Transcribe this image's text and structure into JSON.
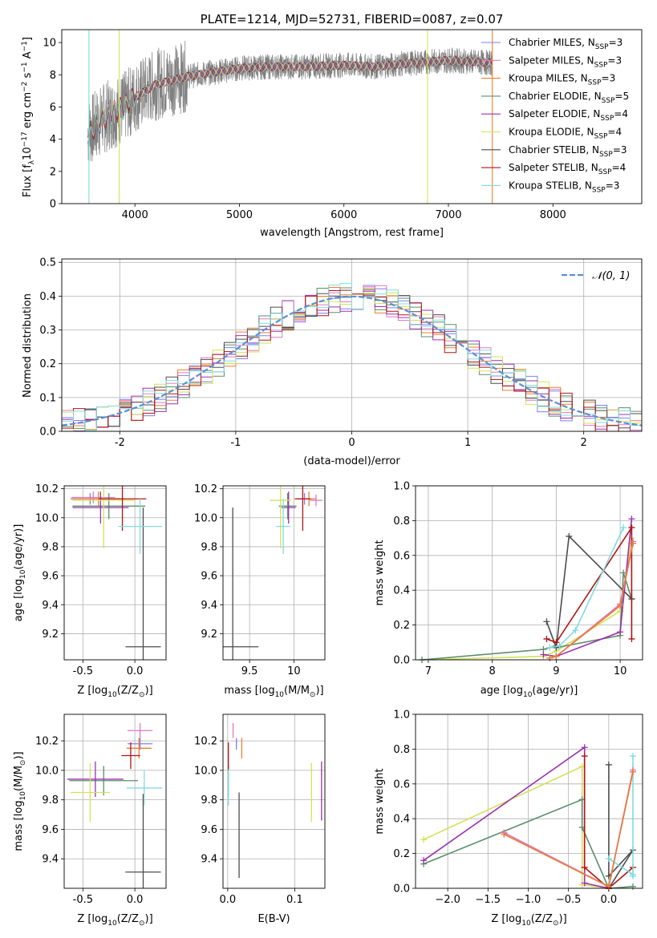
{
  "colors": {
    "Chabrier_MILES": "#7f7ff0",
    "Salpeter_MILES": "#e377c2",
    "Kroupa_MILES": "#ed7d31",
    "Chabrier_ELODIE": "#5b8f6a",
    "Salpeter_ELODIE": "#9b30b0",
    "Kroupa_ELODIE": "#d4e157",
    "Chabrier_STELIB": "#4d4d4d",
    "Salpeter_STELIB": "#b01515",
    "Kroupa_STELIB": "#80dbe0",
    "normal": "#5b8fd6",
    "data": "#808080"
  },
  "chart_data": [
    {
      "id": "spectrum",
      "type": "line",
      "title": "PLATE=1214, MJD=52731, FIBERID=0087, z=0.07",
      "xlabel": "wavelength [Angstrom, rest frame]",
      "ylabel": "Flux [f",
      "ylabel_sub": "λ",
      "ylabel_rest": "10",
      "ylabel_exp": "−17",
      "ylabel_tail": " erg cm",
      "ylabel_exp2": "−2",
      "ylabel_tail2": " s",
      "ylabel_exp3": "−1",
      "ylabel_tail3": " A",
      "ylabel_exp4": "−1",
      "ylabel_end": "]",
      "xlim": [
        3300,
        8850
      ],
      "ylim": [
        0,
        10.8
      ],
      "xticks": [
        4000,
        5000,
        6000,
        7000,
        8000
      ],
      "yticks": [
        0,
        2,
        4,
        6,
        8,
        10
      ],
      "data_range": [
        3550,
        8850
      ],
      "continuum": [
        [
          3550,
          4.4
        ],
        [
          3700,
          5.3
        ],
        [
          3900,
          6.0
        ],
        [
          4000,
          6.6
        ],
        [
          4200,
          7.4
        ],
        [
          4500,
          7.9
        ],
        [
          4800,
          8.2
        ],
        [
          5000,
          8.4
        ],
        [
          5300,
          8.5
        ],
        [
          5600,
          8.5
        ],
        [
          6000,
          8.6
        ],
        [
          6300,
          8.5
        ],
        [
          6600,
          8.7
        ],
        [
          7000,
          8.9
        ],
        [
          7500,
          8.7
        ],
        [
          8000,
          8.6
        ],
        [
          8500,
          8.3
        ],
        [
          8850,
          7.9
        ]
      ],
      "legend": [
        {
          "key": "Chabrier_MILES",
          "label": "Chabrier MILES, N",
          "sub": "SSP",
          "val": "=3"
        },
        {
          "key": "Salpeter_MILES",
          "label": "Salpeter MILES, N",
          "sub": "SSP",
          "val": "=3"
        },
        {
          "key": "Kroupa_MILES",
          "label": "Kroupa MILES, N",
          "sub": "SSP",
          "val": "=3"
        },
        {
          "key": "Chabrier_ELODIE",
          "label": "Chabrier ELODIE, N",
          "sub": "SSP",
          "val": "=5"
        },
        {
          "key": "Salpeter_ELODIE",
          "label": "Salpeter ELODIE, N",
          "sub": "SSP",
          "val": "=4"
        },
        {
          "key": "Kroupa_ELODIE",
          "label": "Kroupa ELODIE, N",
          "sub": "SSP",
          "val": "=4"
        },
        {
          "key": "Chabrier_STELIB",
          "label": "Chabrier STELIB, N",
          "sub": "SSP",
          "val": "=3"
        },
        {
          "key": "Salpeter_STELIB",
          "label": "Salpeter STELIB, N",
          "sub": "SSP",
          "val": "=4"
        },
        {
          "key": "Kroupa_STELIB",
          "label": "Kroupa STELIB, N",
          "sub": "SSP",
          "val": "=3"
        }
      ]
    },
    {
      "id": "residuals",
      "type": "histogram",
      "xlabel": "(data-model)/error",
      "ylabel": "Normed distribution",
      "xlim": [
        -2.5,
        2.5
      ],
      "ylim": [
        0,
        0.51
      ],
      "xticks": [
        -2,
        -1,
        0,
        1,
        2
      ],
      "yticks": [
        0.0,
        0.1,
        0.2,
        0.3,
        0.4,
        0.5
      ],
      "legend_label": "𝒩(0, 1)",
      "bin_width": 0.1
    },
    {
      "id": "age_vs_Z",
      "type": "scatter",
      "xlabel": "Z [log",
      "xlabel_sub": "10",
      "xlabel_rest": "(Z/Z",
      "xlabel_sub2": "⊙",
      "xlabel_end": ")]",
      "ylabel": "age  [log",
      "ylabel_sub": "10",
      "ylabel_rest": "(age/yr)]",
      "xlim": [
        -0.68,
        0.3
      ],
      "ylim": [
        9.02,
        10.22
      ],
      "xticks": [
        -0.5,
        0.0
      ],
      "yticks": [
        9.2,
        9.4,
        9.6,
        9.8,
        10.0,
        10.2
      ],
      "points": [
        {
          "key": "Chabrier_MILES",
          "x": -0.43,
          "y": 10.13,
          "xerr": 0.19,
          "yerr": 0.04
        },
        {
          "key": "Salpeter_MILES",
          "x": -0.4,
          "y": 10.14,
          "xerr": 0.21,
          "yerr": 0.04
        },
        {
          "key": "Kroupa_MILES",
          "x": -0.35,
          "y": 10.13,
          "xerr": 0.25,
          "yerr": 0.05
        },
        {
          "key": "Chabrier_ELODIE",
          "x": -0.25,
          "y": 10.08,
          "xerr": 0.35,
          "yerr": 0.09
        },
        {
          "key": "Salpeter_ELODIE",
          "x": -0.33,
          "y": 10.07,
          "xerr": 0.27,
          "yerr": 0.11
        },
        {
          "key": "Kroupa_ELODIE",
          "x": -0.3,
          "y": 10.12,
          "xerr": 0.3,
          "yerr": 0.33
        },
        {
          "key": "Chabrier_STELIB",
          "x": 0.08,
          "y": 9.11,
          "xerr": 0.17,
          "yerr": 0.96
        },
        {
          "key": "Salpeter_STELIB",
          "x": -0.12,
          "y": 10.13,
          "xerr": 0.23,
          "yerr": 0.22
        },
        {
          "key": "Kroupa_STELIB",
          "x": 0.05,
          "y": 9.94,
          "xerr": 0.21,
          "yerr": 0.19
        }
      ]
    },
    {
      "id": "age_vs_mass",
      "type": "scatter",
      "xlabel": "mass [log",
      "xlabel_sub": "10",
      "xlabel_rest": "(M/M",
      "xlabel_sub2": "⊙",
      "xlabel_end": ")]",
      "xlim": [
        9.2,
        10.35
      ],
      "ylim": [
        9.02,
        10.22
      ],
      "xticks": [
        9.5,
        10.0
      ],
      "yticks": [
        9.2,
        9.4,
        9.6,
        9.8,
        10.0,
        10.2
      ],
      "points": [
        {
          "key": "Chabrier_MILES",
          "x": 10.12,
          "y": 10.13,
          "xerr": 0.08,
          "yerr": 0.04
        },
        {
          "key": "Salpeter_MILES",
          "x": 10.25,
          "y": 10.12,
          "xerr": 0.07,
          "yerr": 0.04
        },
        {
          "key": "Kroupa_MILES",
          "x": 10.17,
          "y": 10.13,
          "xerr": 0.08,
          "yerr": 0.05
        },
        {
          "key": "Chabrier_ELODIE",
          "x": 9.93,
          "y": 10.08,
          "xerr": 0.1,
          "yerr": 0.09
        },
        {
          "key": "Salpeter_ELODIE",
          "x": 9.94,
          "y": 10.07,
          "xerr": 0.08,
          "yerr": 0.11
        },
        {
          "key": "Kroupa_ELODIE",
          "x": 9.85,
          "y": 10.12,
          "xerr": 0.12,
          "yerr": 0.33
        },
        {
          "key": "Chabrier_STELIB",
          "x": 9.31,
          "y": 9.11,
          "xerr": 0.29,
          "yerr": 0.96
        },
        {
          "key": "Salpeter_STELIB",
          "x": 10.1,
          "y": 10.13,
          "xerr": 0.09,
          "yerr": 0.22
        },
        {
          "key": "Kroupa_STELIB",
          "x": 9.88,
          "y": 9.94,
          "xerr": 0.08,
          "yerr": 0.19
        }
      ]
    },
    {
      "id": "massweight_vs_age",
      "type": "line",
      "xlabel": "age  [log",
      "xlabel_sub": "10",
      "xlabel_rest": "(age/yr)]",
      "ylabel": "mass weight",
      "xlim": [
        6.8,
        10.35
      ],
      "ylim": [
        0,
        1.0
      ],
      "xticks": [
        7,
        8,
        9,
        10
      ],
      "yticks": [
        0.0,
        0.2,
        0.4,
        0.6,
        0.8,
        1.0
      ],
      "series": [
        {
          "key": "Kroupa_ELODIE",
          "x": [
            6.9,
            8.8,
            9.0,
            10.0,
            10.18
          ],
          "y": [
            0.0,
            0.02,
            0.05,
            0.28,
            0.7
          ]
        },
        {
          "key": "Chabrier_ELODIE",
          "x": [
            6.9,
            8.8,
            9.0,
            9.0,
            10.0,
            10.05,
            10.18
          ],
          "y": [
            0.0,
            0.06,
            0.08,
            0.07,
            0.14,
            0.5,
            0.35
          ]
        },
        {
          "key": "Salpeter_ELODIE",
          "x": [
            8.8,
            9.0,
            10.0,
            10.18
          ],
          "y": [
            0.03,
            0.02,
            0.16,
            0.81
          ]
        },
        {
          "key": "Chabrier_STELIB",
          "x": [
            8.85,
            9.0,
            9.2,
            10.18
          ],
          "y": [
            0.22,
            0.07,
            0.71,
            0.35
          ]
        },
        {
          "key": "Salpeter_STELIB",
          "x": [
            8.85,
            9.0,
            10.18,
            10.18
          ],
          "y": [
            0.12,
            0.1,
            0.76,
            0.12
          ]
        },
        {
          "key": "Kroupa_STELIB",
          "x": [
            8.9,
            9.05,
            9.3,
            10.05
          ],
          "y": [
            0.07,
            0.08,
            0.17,
            0.76
          ]
        },
        {
          "key": "Chabrier_MILES",
          "x": [
            8.9,
            9.0,
            10.0,
            10.2
          ],
          "y": [
            0.01,
            0.02,
            0.32,
            0.67
          ]
        },
        {
          "key": "Salpeter_MILES",
          "x": [
            8.9,
            9.0,
            10.0,
            10.2
          ],
          "y": [
            0.01,
            0.02,
            0.32,
            0.68
          ]
        },
        {
          "key": "Kroupa_MILES",
          "x": [
            8.9,
            9.0,
            10.0,
            10.2
          ],
          "y": [
            0.01,
            0.02,
            0.31,
            0.67
          ]
        }
      ]
    },
    {
      "id": "mass_vs_Z",
      "type": "scatter",
      "xlabel": "Z [log",
      "xlabel_sub": "10",
      "xlabel_rest": "(Z/Z",
      "xlabel_sub2": "⊙",
      "xlabel_end": ")]",
      "ylabel": "mass [log",
      "ylabel_sub": "10",
      "ylabel_rest": "(M/M",
      "ylabel_sub2": "⊙",
      "ylabel_end": ")]",
      "xlim": [
        -0.68,
        0.3
      ],
      "ylim": [
        9.2,
        10.38
      ],
      "xticks": [
        -0.5,
        0.0
      ],
      "yticks": [
        9.4,
        9.6,
        9.8,
        10.0,
        10.2
      ],
      "points": [
        {
          "key": "Chabrier_MILES",
          "x": 0.05,
          "y": 10.18,
          "xerr": 0.12,
          "yerr": 0.04
        },
        {
          "key": "Salpeter_MILES",
          "x": 0.05,
          "y": 10.27,
          "xerr": 0.12,
          "yerr": 0.05
        },
        {
          "key": "Kroupa_MILES",
          "x": 0.04,
          "y": 10.15,
          "xerr": 0.12,
          "yerr": 0.07
        },
        {
          "key": "Chabrier_ELODIE",
          "x": -0.3,
          "y": 9.93,
          "xerr": 0.33,
          "yerr": 0.1
        },
        {
          "key": "Salpeter_ELODIE",
          "x": -0.38,
          "y": 9.94,
          "xerr": 0.27,
          "yerr": 0.12
        },
        {
          "key": "Kroupa_ELODIE",
          "x": -0.43,
          "y": 9.85,
          "xerr": 0.19,
          "yerr": 0.2
        },
        {
          "key": "Chabrier_STELIB",
          "x": 0.08,
          "y": 9.31,
          "xerr": 0.17,
          "yerr": 0.53
        },
        {
          "key": "Salpeter_STELIB",
          "x": -0.04,
          "y": 10.1,
          "xerr": 0.09,
          "yerr": 0.09
        },
        {
          "key": "Kroupa_STELIB",
          "x": 0.09,
          "y": 9.88,
          "xerr": 0.17,
          "yerr": 0.12
        }
      ]
    },
    {
      "id": "mass_vs_ebv",
      "type": "scatter",
      "xlabel": "E(B-V)",
      "xlim": [
        -0.007,
        0.145
      ],
      "ylim": [
        9.2,
        10.38
      ],
      "xticks": [
        0.0,
        0.1
      ],
      "yticks": [
        9.4,
        9.6,
        9.8,
        10.0,
        10.2
      ],
      "points": [
        {
          "key": "Chabrier_MILES",
          "x": 0.013,
          "y": 10.18,
          "xerr": 0,
          "yerr": 0.04
        },
        {
          "key": "Salpeter_MILES",
          "x": 0.008,
          "y": 10.27,
          "xerr": 0,
          "yerr": 0.05
        },
        {
          "key": "Kroupa_MILES",
          "x": 0.021,
          "y": 10.15,
          "xerr": 0,
          "yerr": 0.07
        },
        {
          "key": "Chabrier_ELODIE",
          "x": 0.001,
          "y": 9.93,
          "xerr": 0,
          "yerr": 0.1
        },
        {
          "key": "Salpeter_ELODIE",
          "x": 0.14,
          "y": 9.86,
          "xerr": 0,
          "yerr": 0.2
        },
        {
          "key": "Kroupa_ELODIE",
          "x": 0.125,
          "y": 9.85,
          "xerr": 0,
          "yerr": 0.2
        },
        {
          "key": "Chabrier_STELIB",
          "x": 0.017,
          "y": 9.56,
          "xerr": 0,
          "yerr": 0.29
        },
        {
          "key": "Salpeter_STELIB",
          "x": 0.001,
          "y": 10.1,
          "xerr": 0,
          "yerr": 0.09
        },
        {
          "key": "Kroupa_STELIB",
          "x": 0.001,
          "y": 9.88,
          "xerr": 0,
          "yerr": 0.12
        }
      ]
    },
    {
      "id": "massweight_vs_Z",
      "type": "line",
      "xlabel": "Z [log",
      "xlabel_sub": "10",
      "xlabel_rest": "(Z/Z",
      "xlabel_sub2": "⊙",
      "xlabel_end": ")]",
      "ylabel": "mass weight",
      "xlim": [
        -2.4,
        0.42
      ],
      "ylim": [
        0,
        1.0
      ],
      "xticks": [
        -2.0,
        -1.5,
        -1.0,
        -0.5,
        0.0
      ],
      "yticks": [
        0.0,
        0.2,
        0.4,
        0.6,
        0.8,
        1.0
      ],
      "series": [
        {
          "key": "Kroupa_ELODIE",
          "x": [
            -2.3,
            -0.33,
            -0.33,
            0.0
          ],
          "y": [
            0.28,
            0.7,
            0.02,
            0.0
          ]
        },
        {
          "key": "Chabrier_ELODIE",
          "x": [
            -2.3,
            -0.33,
            -0.33,
            0.0,
            0.3
          ],
          "y": [
            0.14,
            0.51,
            0.35,
            0.0,
            0.01
          ]
        },
        {
          "key": "Salpeter_ELODIE",
          "x": [
            -2.3,
            -0.3,
            -0.3,
            0.0
          ],
          "y": [
            0.16,
            0.81,
            0.03,
            0.0
          ]
        },
        {
          "key": "Chabrier_STELIB",
          "x": [
            0.0,
            0.0,
            0.3,
            0.0
          ],
          "y": [
            0.71,
            0.07,
            0.22,
            0.0
          ]
        },
        {
          "key": "Salpeter_STELIB",
          "x": [
            -0.3,
            -0.3,
            0.0,
            0.3
          ],
          "y": [
            0.76,
            0.12,
            0.0,
            0.12
          ]
        },
        {
          "key": "Kroupa_STELIB",
          "x": [
            0.0,
            0.3,
            0.3,
            0.3
          ],
          "y": [
            0.17,
            0.08,
            0.76,
            0.07
          ]
        },
        {
          "key": "Chabrier_MILES",
          "x": [
            -1.3,
            0.0,
            0.3
          ],
          "y": [
            0.32,
            0.01,
            0.67
          ]
        },
        {
          "key": "Salpeter_MILES",
          "x": [
            -1.3,
            0.0,
            0.3
          ],
          "y": [
            0.32,
            0.01,
            0.68
          ]
        },
        {
          "key": "Kroupa_MILES",
          "x": [
            -1.3,
            0.0,
            0.3
          ],
          "y": [
            0.31,
            0.01,
            0.67
          ]
        }
      ]
    }
  ]
}
